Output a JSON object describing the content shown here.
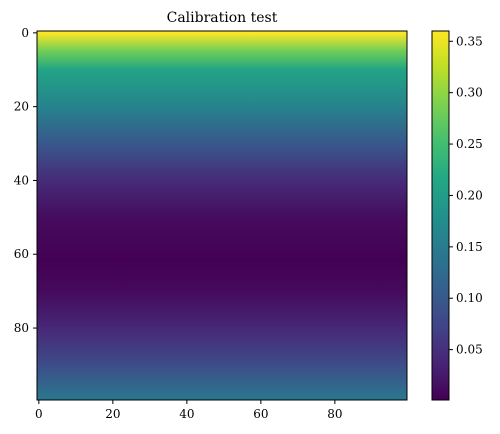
{
  "chart_data": {
    "type": "heatmap",
    "title": "Calibration test",
    "xlabel": "",
    "ylabel": "",
    "grid": false,
    "colormap": "viridis",
    "shape": [
      100,
      100
    ],
    "x_range": [
      0,
      99
    ],
    "y_range": [
      0,
      99
    ],
    "y_inverted": true,
    "x_ticks": [
      0,
      20,
      40,
      60,
      80
    ],
    "y_ticks": [
      0,
      20,
      40,
      60,
      80
    ],
    "row_profile": {
      "description_rows": [
        0,
        5,
        10,
        20,
        30,
        40,
        50,
        60,
        62,
        70,
        80,
        90,
        99
      ],
      "values": [
        0.36,
        0.28,
        0.21,
        0.16,
        0.1,
        0.045,
        0.012,
        0.002,
        0.001,
        0.01,
        0.04,
        0.085,
        0.14
      ]
    },
    "colorbar": {
      "range": [
        0.001,
        0.36
      ],
      "ticks": [
        0.05,
        0.1,
        0.15,
        0.2,
        0.25,
        0.3,
        0.35
      ],
      "tick_labels": [
        "0.05",
        "0.10",
        "0.15",
        "0.20",
        "0.25",
        "0.30",
        "0.35"
      ]
    }
  }
}
